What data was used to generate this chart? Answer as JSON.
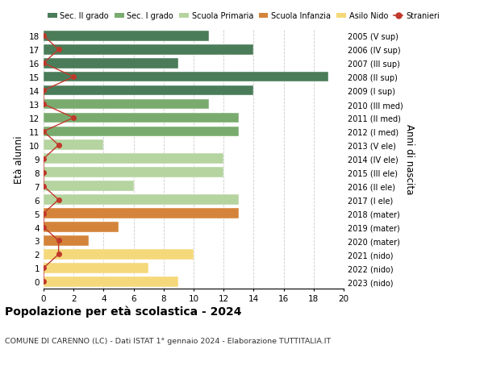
{
  "ages": [
    18,
    17,
    16,
    15,
    14,
    13,
    12,
    11,
    10,
    9,
    8,
    7,
    6,
    5,
    4,
    3,
    2,
    1,
    0
  ],
  "bar_values": [
    11,
    14,
    9,
    19,
    14,
    11,
    13,
    13,
    4,
    12,
    12,
    6,
    13,
    13,
    5,
    3,
    10,
    7,
    9
  ],
  "bar_colors": [
    "#4a7c59",
    "#4a7c59",
    "#4a7c59",
    "#4a7c59",
    "#4a7c59",
    "#7aab6e",
    "#7aab6e",
    "#7aab6e",
    "#b5d4a0",
    "#b5d4a0",
    "#b5d4a0",
    "#b5d4a0",
    "#b5d4a0",
    "#d4843a",
    "#d4843a",
    "#d4843a",
    "#f5d87a",
    "#f5d87a",
    "#f5d87a"
  ],
  "stranieri_x_values": [
    0,
    1,
    0,
    2,
    0,
    0,
    2,
    0,
    1,
    0,
    0,
    0,
    1,
    0,
    0,
    1,
    1,
    0,
    0
  ],
  "right_labels": [
    "2005 (V sup)",
    "2006 (IV sup)",
    "2007 (III sup)",
    "2008 (II sup)",
    "2009 (I sup)",
    "2010 (III med)",
    "2011 (II med)",
    "2012 (I med)",
    "2013 (V ele)",
    "2014 (IV ele)",
    "2015 (III ele)",
    "2016 (II ele)",
    "2017 (I ele)",
    "2018 (mater)",
    "2019 (mater)",
    "2020 (mater)",
    "2021 (nido)",
    "2022 (nido)",
    "2023 (nido)"
  ],
  "legend_labels": [
    "Sec. II grado",
    "Sec. I grado",
    "Scuola Primaria",
    "Scuola Infanzia",
    "Asilo Nido",
    "Stranieri"
  ],
  "legend_colors": [
    "#4a7c59",
    "#7aab6e",
    "#b5d4a0",
    "#d4843a",
    "#f5d87a",
    "#c0392b"
  ],
  "ylabel": "Età alunni",
  "right_ylabel": "Anni di nascita",
  "title": "Popolazione per età scolastica - 2024",
  "subtitle": "COMUNE DI CARENNO (LC) - Dati ISTAT 1° gennaio 2024 - Elaborazione TUTTITALIA.IT",
  "xlim": [
    0,
    20
  ],
  "xticks": [
    0,
    2,
    4,
    6,
    8,
    10,
    12,
    14,
    16,
    18,
    20
  ],
  "background_color": "#ffffff",
  "grid_color": "#cccccc",
  "stranieri_color": "#c0392b"
}
